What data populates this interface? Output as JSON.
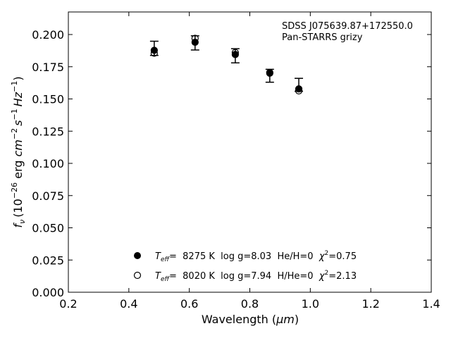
{
  "chart_data": {
    "type": "scatter",
    "xlabel_main": "Wavelength (",
    "xlabel_unit": "μm",
    "xlabel_end": ")",
    "ylabel_f": "f",
    "ylabel_sub": "ν",
    "ylabel_rest": "(10",
    "ylabel_exp1": "−26",
    "ylabel_erg": " erg ",
    "ylabel_cm": "cm",
    "ylabel_exp2": "−2",
    "ylabel_s": "s",
    "ylabel_exp3": "−1",
    "ylabel_hz": "Hz",
    "ylabel_exp4": "−1",
    "ylabel_close": ")",
    "xlim": [
      0.2,
      1.4
    ],
    "ylim": [
      0.0,
      0.2175
    ],
    "x_ticks": [
      "0.2",
      "0.4",
      "0.6",
      "0.8",
      "1.0",
      "1.2",
      "1.4"
    ],
    "y_ticks": [
      "0.000",
      "0.025",
      "0.050",
      "0.075",
      "0.100",
      "0.125",
      "0.150",
      "0.175",
      "0.200"
    ],
    "annotations": [
      "SDSS J075639.87+172550.0",
      "Pan-STARRS grizy"
    ],
    "observed": {
      "x": [
        0.484,
        0.619,
        0.752,
        0.866,
        0.962
      ],
      "y": [
        0.1893,
        0.1935,
        0.1835,
        0.168,
        0.161
      ],
      "err": [
        0.0055,
        0.0055,
        0.0055,
        0.005,
        0.005
      ]
    },
    "series": [
      {
        "marker": "filled",
        "legend_teff_label": "T",
        "legend_teff_sub": "eff",
        "legend_text": "=  8275 K  log g=8.03  He/H=0  ",
        "legend_chi": "χ",
        "legend_chi_exp": "2",
        "legend_chi_val": "=0.75",
        "x": [
          0.484,
          0.619,
          0.752,
          0.866,
          0.962
        ],
        "y": [
          0.1877,
          0.194,
          0.1845,
          0.17,
          0.1578
        ]
      },
      {
        "marker": "open",
        "legend_teff_label": "T",
        "legend_teff_sub": "eff",
        "legend_text": "=  8020 K  log g=7.94  H/He=0  ",
        "legend_chi": "χ",
        "legend_chi_exp": "2",
        "legend_chi_val": "=2.13",
        "x": [
          0.484,
          0.619,
          0.752,
          0.866,
          0.962
        ],
        "y": [
          0.1855,
          0.197,
          0.186,
          0.1705,
          0.1563
        ]
      }
    ],
    "grid": false,
    "legend_placement": "bottom-center"
  }
}
